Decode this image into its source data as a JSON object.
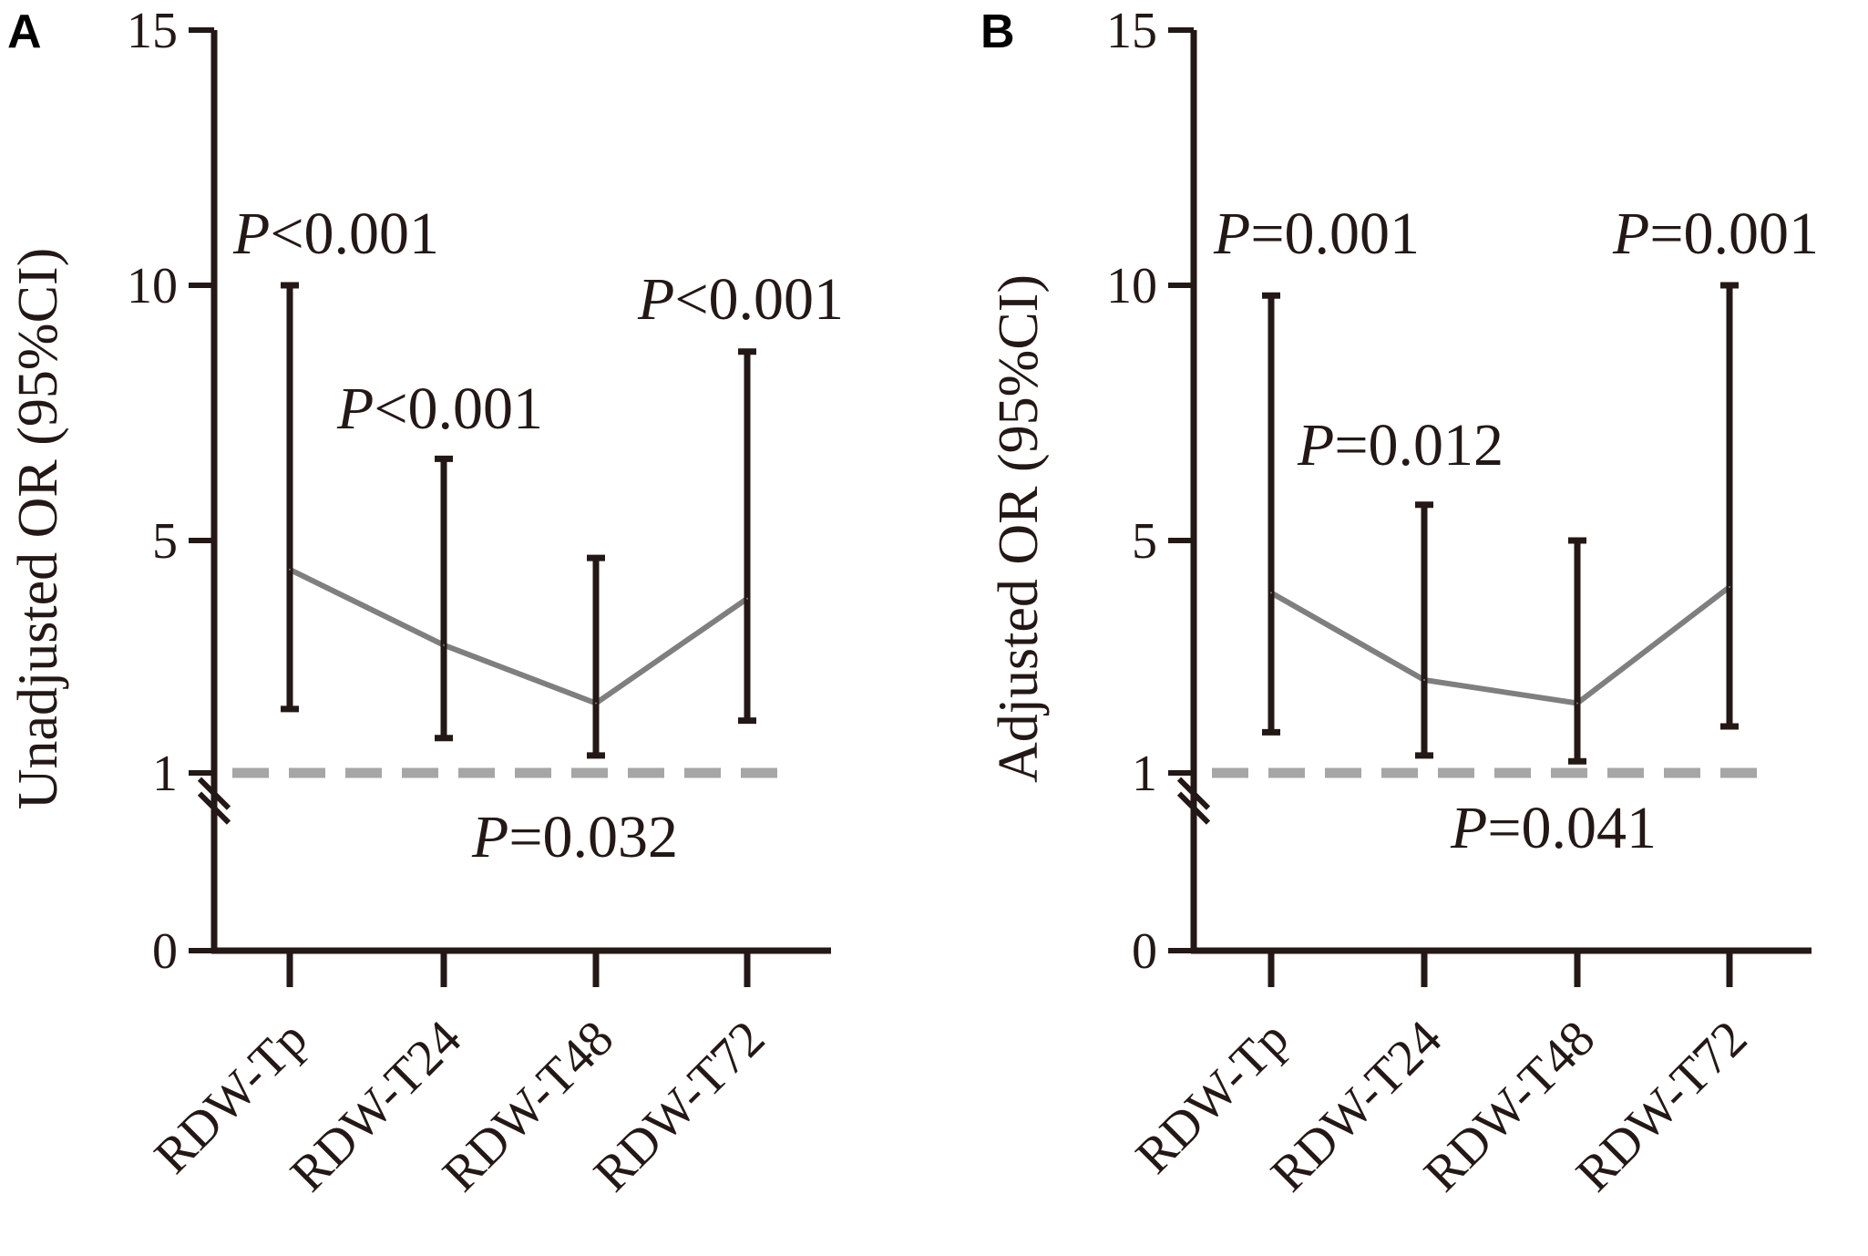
{
  "colors": {
    "axis": "#231815",
    "trend_line": "#7f7f7f",
    "reference_line": "#a6a6a6"
  },
  "chart_data": [
    {
      "type": "line",
      "panel": "A",
      "ylabel": "Unadjusted OR (95%CI)",
      "ylim": [
        0,
        15
      ],
      "axis_break_between": [
        0,
        1
      ],
      "yticks": [
        0,
        1,
        5,
        10,
        15
      ],
      "ytick_labels": [
        "0",
        "1",
        "5",
        "10",
        "15"
      ],
      "categories": [
        "RDW-Tp",
        "RDW-T24",
        "RDW-T48",
        "RDW-T72"
      ],
      "series": [
        {
          "values": [
            4.5,
            3.2,
            2.2,
            4.0
          ],
          "lower": [
            2.1,
            1.6,
            1.3,
            1.9
          ],
          "upper": [
            10.0,
            6.6,
            4.7,
            8.7
          ]
        }
      ],
      "reference_line": 1,
      "annotations": [
        {
          "prefix": "P",
          "text": "<0.001"
        },
        {
          "prefix": "P",
          "text": "<0.001"
        },
        {
          "prefix": "P",
          "text": "=0.032"
        },
        {
          "prefix": "P",
          "text": "<0.001"
        }
      ],
      "grid": false
    },
    {
      "type": "line",
      "panel": "B",
      "ylabel": "Adjusted OR (95%CI)",
      "ylim": [
        0,
        15
      ],
      "axis_break_between": [
        0,
        1
      ],
      "yticks": [
        0,
        1,
        5,
        10,
        15
      ],
      "ytick_labels": [
        "0",
        "1",
        "5",
        "10",
        "15"
      ],
      "categories": [
        "RDW-Tp",
        "RDW-T24",
        "RDW-T48",
        "RDW-T72"
      ],
      "series": [
        {
          "values": [
            4.1,
            2.6,
            2.2,
            4.2
          ],
          "lower": [
            1.7,
            1.3,
            1.2,
            1.8
          ],
          "upper": [
            9.8,
            5.7,
            5.0,
            10.0
          ]
        }
      ],
      "reference_line": 1,
      "annotations": [
        {
          "prefix": "P",
          "text": "=0.001"
        },
        {
          "prefix": "P",
          "text": "=0.012"
        },
        {
          "prefix": "P",
          "text": "=0.041"
        },
        {
          "prefix": "P",
          "text": "=0.001"
        }
      ],
      "grid": false
    }
  ]
}
